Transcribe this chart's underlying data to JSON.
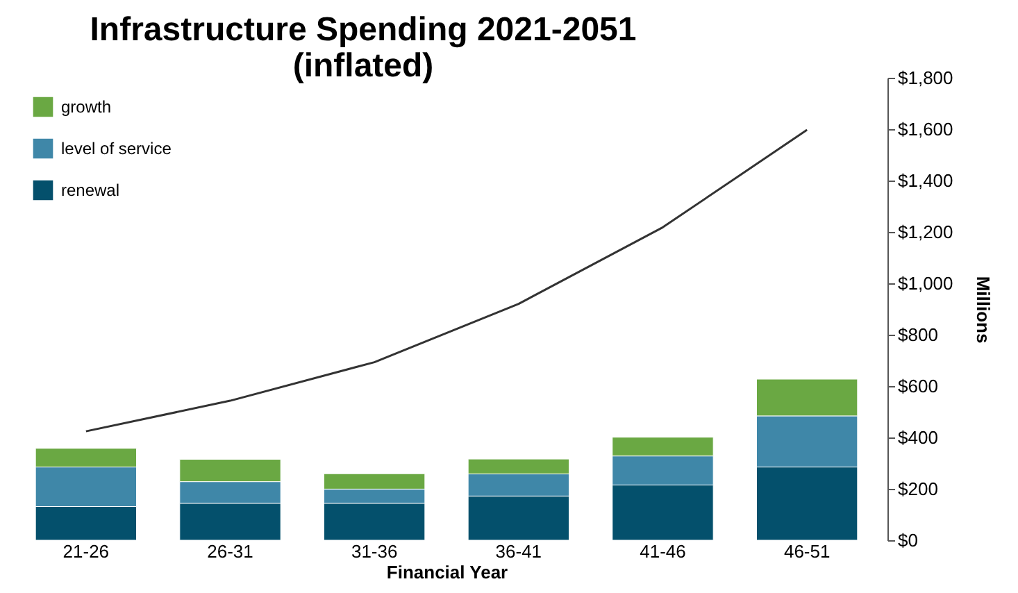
{
  "chart_data": {
    "type": "bar",
    "title": "Infrastructure Spending 2021-2051\n(inflated)",
    "xlabel": "Financial Year",
    "ylabel": "Millions",
    "categories": [
      "21-26",
      "26-31",
      "31-36",
      "36-41",
      "41-46",
      "46-51"
    ],
    "stacked": true,
    "legend": "top left",
    "grid": false,
    "ylim": [
      0,
      1800
    ],
    "yticks": [
      {
        "value": 0,
        "label": "$0"
      },
      {
        "value": 200,
        "label": "$200"
      },
      {
        "value": 400,
        "label": "$400"
      },
      {
        "value": 600,
        "label": "$600"
      },
      {
        "value": 800,
        "label": "$800"
      },
      {
        "value": 1000,
        "label": "$1,000"
      },
      {
        "value": 1200,
        "label": "$1,200"
      },
      {
        "value": 1400,
        "label": "$1,400"
      },
      {
        "value": 1600,
        "label": "$1,600"
      },
      {
        "value": 1800,
        "label": "$1,800"
      }
    ],
    "series": [
      {
        "name": "renewal",
        "color": "#04506c",
        "values": [
          131,
          144,
          144,
          172,
          215,
          285
        ]
      },
      {
        "name": "level of service",
        "color": "#3f87a8",
        "values": [
          154,
          84,
          55,
          86,
          113,
          199
        ]
      },
      {
        "name": "growth",
        "color": "#6aa843",
        "values": [
          73,
          87,
          60,
          58,
          73,
          143
        ]
      },
      {
        "type": "line",
        "color": "#333333",
        "values": [
          424,
          543,
          693,
          920,
          1218,
          1597
        ]
      }
    ]
  }
}
